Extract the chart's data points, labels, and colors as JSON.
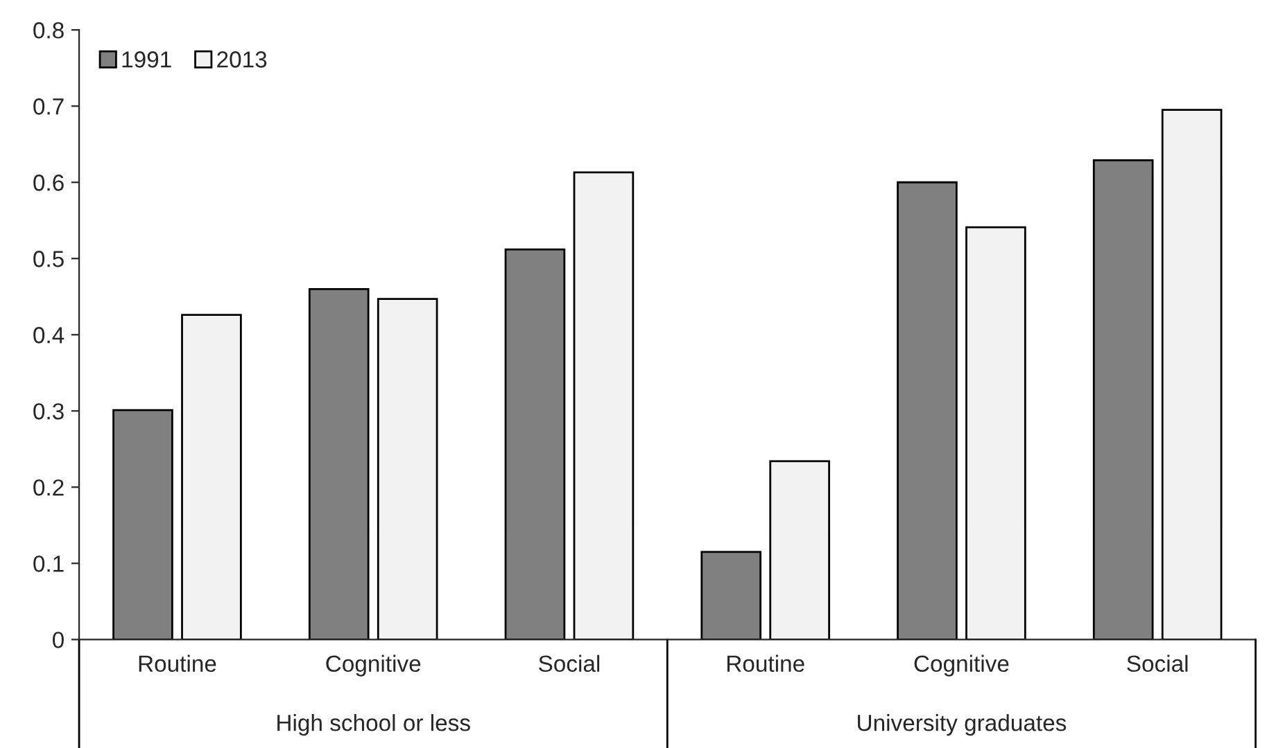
{
  "chart_data": {
    "type": "bar",
    "categories": [
      "Routine",
      "Cognitive",
      "Social",
      "Routine",
      "Cognitive",
      "Social"
    ],
    "series": [
      {
        "name": "1991",
        "color": "#808080",
        "values": [
          0.301,
          0.46,
          0.512,
          0.115,
          0.6,
          0.629
        ]
      },
      {
        "name": "2013",
        "color": "#f2f2f2",
        "values": [
          0.426,
          0.447,
          0.613,
          0.234,
          0.541,
          0.695
        ]
      }
    ],
    "annotations": [
      "High school or less",
      "University graduates"
    ],
    "ylim": [
      0,
      0.8
    ],
    "yticks": [
      0,
      0.1,
      0.2,
      0.3,
      0.4,
      0.5,
      0.6,
      0.7,
      0.8
    ],
    "grid": false,
    "legend": "top left"
  }
}
